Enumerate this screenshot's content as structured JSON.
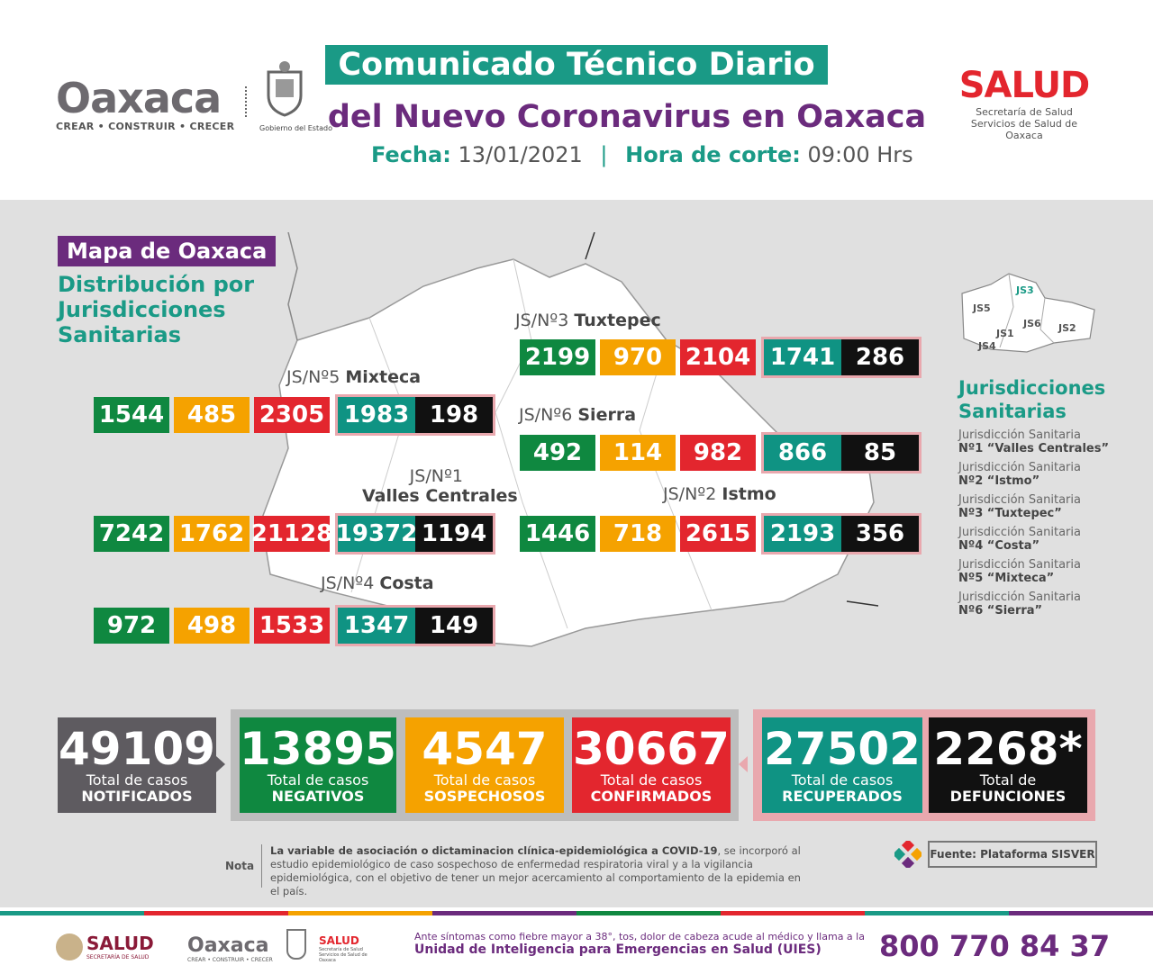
{
  "header": {
    "logo_left_word": "Oaxaca",
    "logo_left_tag": "CREAR • CONSTRUIR • CRECER",
    "gobierno_label": "Gobierno del Estado",
    "title_line1": "Comunicado Técnico Diario",
    "title_line2": "del Nuevo Coronavirus en Oaxaca",
    "fecha_label": "Fecha:",
    "fecha_value": "13/01/2021",
    "hora_label": "Hora de corte:",
    "hora_value": "09:00 Hrs",
    "salud_word": "SALUD",
    "salud_sub1": "Secretaría de Salud",
    "salud_sub2": "Servicios de Salud de Oaxaca"
  },
  "map": {
    "tag": "Mapa de Oaxaca",
    "heading_lines": [
      "Distribución por",
      "Jurisdicciones",
      "Sanitarias"
    ],
    "js": [
      {
        "label_prefix": "JS/Nº3",
        "label_name": "Tuxtepec",
        "values": [
          "2199",
          "970",
          "2104",
          "1741",
          "286"
        ]
      },
      {
        "label_prefix": "JS/Nº5",
        "label_name": "Mixteca",
        "values": [
          "1544",
          "485",
          "2305",
          "1983",
          "198"
        ]
      },
      {
        "label_prefix": "JS/Nº6",
        "label_name": "Sierra",
        "values": [
          "492",
          "114",
          "982",
          "866",
          "85"
        ]
      },
      {
        "label_prefix": "JS/Nº1",
        "label_name": "Valles Centrales",
        "values": [
          "7242",
          "1762",
          "21128",
          "19372",
          "1194"
        ]
      },
      {
        "label_prefix": "JS/Nº2",
        "label_name": "Istmo",
        "values": [
          "1446",
          "718",
          "2615",
          "2193",
          "356"
        ]
      },
      {
        "label_prefix": "JS/Nº4",
        "label_name": "Costa",
        "values": [
          "972",
          "498",
          "1533",
          "1347",
          "149"
        ]
      }
    ],
    "mini_map_labels": [
      "JS3",
      "JS5",
      "JS6",
      "JS2",
      "JS1",
      "JS4"
    ],
    "side_heading_lines": [
      "Jurisdicciones",
      "Sanitarias"
    ],
    "side_list": [
      {
        "a": "Jurisdicción Sanitaria",
        "b": "Nº1 “Valles Centrales”"
      },
      {
        "a": "Jurisdicción Sanitaria",
        "b": "Nº2 “Istmo”"
      },
      {
        "a": "Jurisdicción Sanitaria",
        "b": "Nº3 “Tuxtepec”"
      },
      {
        "a": "Jurisdicción Sanitaria",
        "b": "Nº4 “Costa”"
      },
      {
        "a": "Jurisdicción Sanitaria",
        "b": "Nº5 “Mixteca”"
      },
      {
        "a": "Jurisdicción Sanitaria",
        "b": "Nº6 “Sierra”"
      }
    ]
  },
  "totals": [
    {
      "num": "49109",
      "l1": "Total de casos",
      "l2": "NOTIFICADOS",
      "color": "#5e5b60"
    },
    {
      "num": "13895",
      "l1": "Total de casos",
      "l2": "NEGATIVOS",
      "color": "#0f8840"
    },
    {
      "num": "4547",
      "l1": "Total de casos",
      "l2": "SOSPECHOSOS",
      "color": "#f5a200"
    },
    {
      "num": "30667",
      "l1": "Total de casos",
      "l2": "CONFIRMADOS",
      "color": "#e3262e"
    },
    {
      "num": "27502",
      "l1": "Total de casos",
      "l2": "RECUPERADOS",
      "color": "#0f9383"
    },
    {
      "num": "2268*",
      "l1": "Total de",
      "l2": "DEFUNCIONES",
      "color": "#111111"
    }
  ],
  "note": {
    "label": "Nota",
    "bold": "La variable de asociación o dictaminacion clínica-epidemiológica a COVID-19",
    "rest": ", se incorporó al estudio epidemiológico de caso sospechoso de enfermedad respiratoria viral y a la vigilancia epidemiológica, con el objetivo de tener un mejor acercamiento al comportamiento de la epidemia en el país.",
    "source": "Fuente: Plataforma SISVER"
  },
  "footer": {
    "salud_federal": "SALUD",
    "salud_federal_sub": "SECRETARÍA DE SALUD",
    "oaxaca_word": "Oaxaca",
    "oaxaca_tag": "CREAR • CONSTRUIR • CRECER",
    "salud_small": "SALUD",
    "salud_small_sub": "Secretaría de Salud Servicios de Salud de Oaxaca",
    "advice_line1": "Ante síntomas como fiebre mayor a 38°, tos, dolor de cabeza acude al médico y llama a la",
    "advice_line2": "Unidad de Inteligencia para Emergencias en Salud (UIES)",
    "phone": "800 770 84 37"
  }
}
